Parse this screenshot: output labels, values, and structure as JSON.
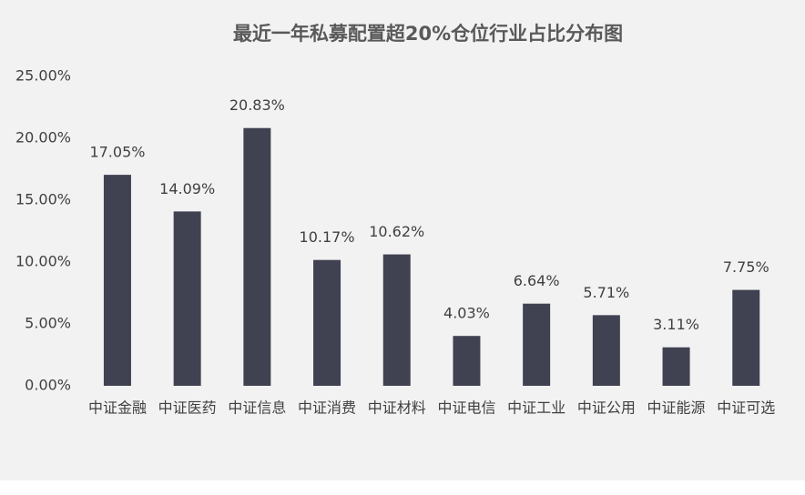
{
  "chart_data": {
    "type": "bar",
    "title": "最近一年私募配置超20%仓位行业占比分布图",
    "categories": [
      "中证金融",
      "中证医药",
      "中证信息",
      "中证消费",
      "中证材料",
      "中证电信",
      "中证工业",
      "中证公用",
      "中证能源",
      "中证可选"
    ],
    "values": [
      17.05,
      14.09,
      20.83,
      10.17,
      10.62,
      4.03,
      6.64,
      5.71,
      3.11,
      7.75
    ],
    "value_labels": [
      "17.05%",
      "14.09%",
      "20.83%",
      "10.17%",
      "10.62%",
      "4.03%",
      "6.64%",
      "5.71%",
      "3.11%",
      "7.75%"
    ],
    "color": "#404252",
    "ylim": [
      0,
      25
    ],
    "yticks": [
      {
        "value": 0,
        "label": "0.00%"
      },
      {
        "value": 5,
        "label": "5.00%"
      },
      {
        "value": 10,
        "label": "10.00%"
      },
      {
        "value": 15,
        "label": "15.00%"
      },
      {
        "value": 20,
        "label": "20.00%"
      },
      {
        "value": 25,
        "label": "25.00%"
      }
    ],
    "grid": false
  }
}
